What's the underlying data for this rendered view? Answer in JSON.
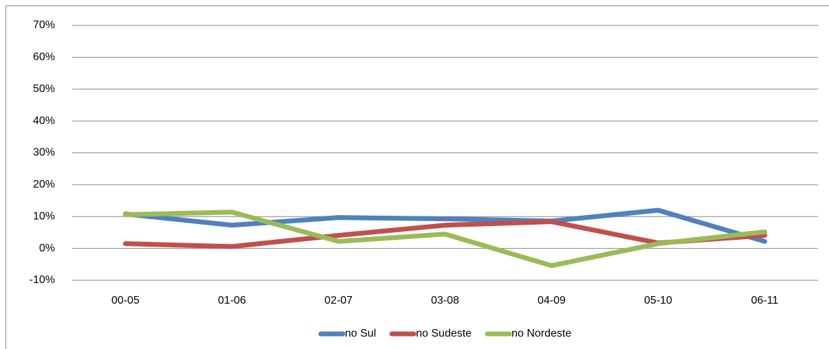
{
  "chart_data": {
    "type": "line",
    "categories": [
      "00-05",
      "01-06",
      "02-07",
      "03-08",
      "04-09",
      "05-10",
      "06-11"
    ],
    "series": [
      {
        "name": "no Sul",
        "color": "#4f81bd",
        "values": [
          10.8,
          7.3,
          9.7,
          9.3,
          8.6,
          12,
          2.2
        ]
      },
      {
        "name": "no Sudeste",
        "color": "#c0504d",
        "values": [
          1.5,
          0.6,
          4.1,
          7.3,
          8.4,
          1.7,
          4.1
        ]
      },
      {
        "name": "no Nordeste",
        "color": "#9bbb59",
        "values": [
          10.6,
          11.4,
          2.2,
          4.5,
          -5.4,
          1.5,
          5.2
        ]
      }
    ],
    "ylim": [
      -10,
      70
    ],
    "yticks": [
      {
        "value": -10,
        "label": "-10%"
      },
      {
        "value": 0,
        "label": "0%"
      },
      {
        "value": 10,
        "label": "10%"
      },
      {
        "value": 20,
        "label": "20%"
      },
      {
        "value": 30,
        "label": "30%"
      },
      {
        "value": 40,
        "label": "40%"
      },
      {
        "value": 50,
        "label": "50%"
      },
      {
        "value": 60,
        "label": "60%"
      },
      {
        "value": 70,
        "label": "70%"
      }
    ],
    "grid": true,
    "legend": "bottom"
  }
}
